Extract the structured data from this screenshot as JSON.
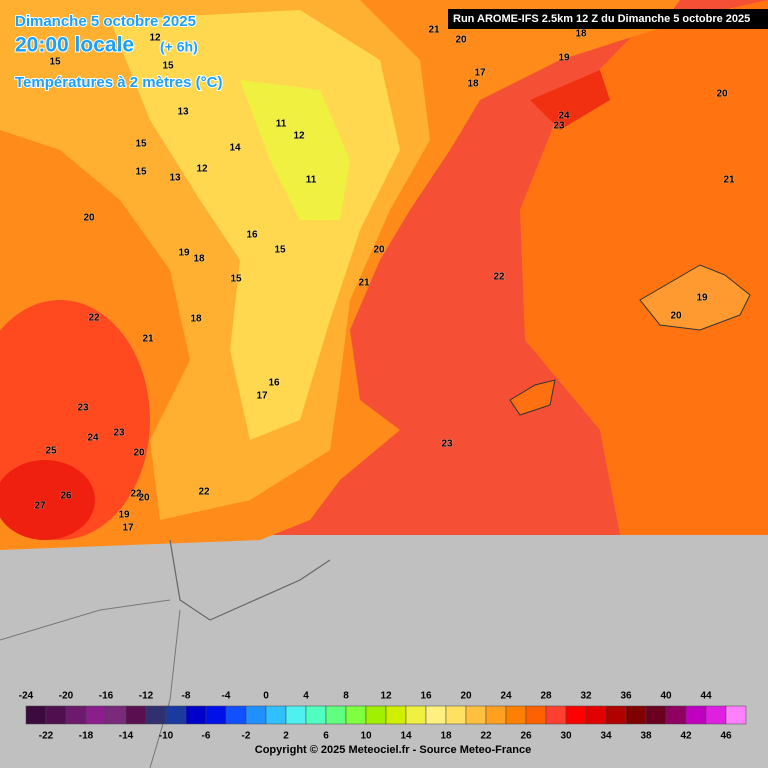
{
  "header": {
    "title": "Dimanche 5 octobre 2025",
    "time": "20:00 locale",
    "offset": "(+ 6h)",
    "variable": "Températures à 2 mètres (°C)",
    "run": "Run AROME-IFS 2.5km 12 Z du Dimanche 5 octobre 2025"
  },
  "map_labels": [
    21,
    20,
    18,
    19,
    17,
    18,
    20,
    24,
    23,
    21,
    22,
    19,
    20,
    23,
    12,
    15,
    15,
    13,
    11,
    12,
    15,
    14,
    12,
    15,
    13,
    11,
    20,
    16,
    15,
    19,
    18,
    20,
    15,
    21,
    22,
    18,
    21,
    16,
    17,
    23,
    24,
    23,
    25,
    20,
    22,
    26,
    22,
    20,
    27,
    19,
    17
  ],
  "legend": {
    "ticks": [
      -24,
      -22,
      -20,
      -18,
      -16,
      -14,
      -12,
      -10,
      -8,
      -6,
      -4,
      -2,
      0,
      2,
      4,
      6,
      8,
      10,
      12,
      14,
      16,
      18,
      20,
      22,
      24,
      26,
      28,
      30,
      32,
      34,
      36,
      38,
      40,
      42,
      44,
      46
    ],
    "colors": [
      "#3c0a3c",
      "#50104f",
      "#6d1a6d",
      "#8a1e8a",
      "#7a2a7a",
      "#5a1050",
      "#303070",
      "#1a3aa0",
      "#0000c8",
      "#0010e8",
      "#1050ff",
      "#2090ff",
      "#30c0ff",
      "#50f0f0",
      "#50ffc0",
      "#60ff80",
      "#80ff40",
      "#a0f000",
      "#d0f000",
      "#f0f040",
      "#fff080",
      "#ffe060",
      "#ffc040",
      "#ffa020",
      "#ff8000",
      "#ff6000",
      "#ff4030",
      "#ff0000",
      "#e00000",
      "#b00000",
      "#800000",
      "#6a0020",
      "#900060",
      "#c000c0",
      "#e020e0",
      "#ff80ff"
    ]
  },
  "footer": {
    "copyright": "Copyright © 2025 Meteociel.fr - Source Meteo-France"
  }
}
